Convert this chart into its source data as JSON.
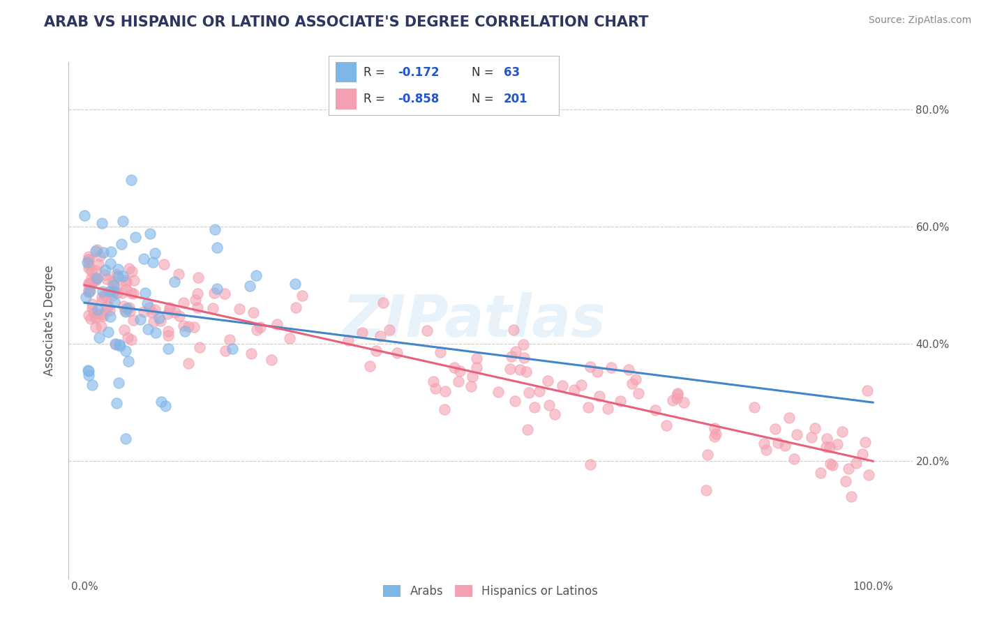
{
  "title": "ARAB VS HISPANIC OR LATINO ASSOCIATE'S DEGREE CORRELATION CHART",
  "source": "Source: ZipAtlas.com",
  "ylabel": "Associate's Degree",
  "arab_R": -0.172,
  "arab_N": 63,
  "hispanic_R": -0.858,
  "hispanic_N": 201,
  "arab_color": "#7eb6e8",
  "hispanic_color": "#f4a0b0",
  "arab_line_color": "#4285c8",
  "hispanic_line_color": "#e8607a",
  "legend_text_color": "#2255cc",
  "watermark": "ZIPatlas",
  "background_color": "#ffffff",
  "grid_color": "#cccccc",
  "title_color": "#2d3561",
  "title_fontsize": 15,
  "axis_label_color": "#555555",
  "source_color": "#888888",
  "arab_line_x0": 0.0,
  "arab_line_y0": 0.47,
  "arab_line_x1": 1.0,
  "arab_line_y1": 0.3,
  "hispanic_line_x0": 0.0,
  "hispanic_line_y0": 0.5,
  "hispanic_line_x1": 1.0,
  "hispanic_line_y1": 0.2,
  "ylim_low": 0.0,
  "ylim_high": 0.88,
  "xlim_low": -0.02,
  "xlim_high": 1.05
}
